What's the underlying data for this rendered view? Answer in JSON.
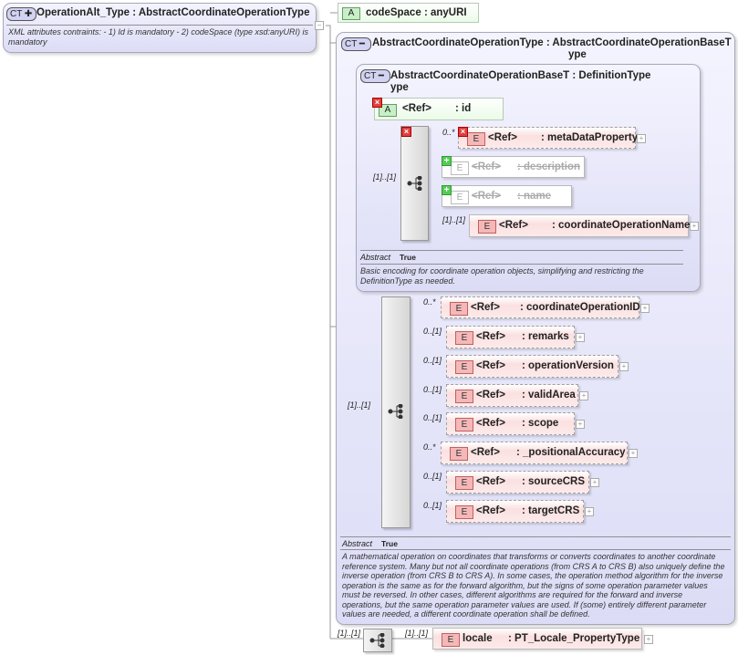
{
  "root": {
    "badge": "CT",
    "name": "OperationAlt_Type",
    "base": ": AbstractCoordinateOperationType",
    "description": "XML attributes contraints: - 1) Id is mandatory - 2) codeSpace (type xsd:anyURI) is mandatory"
  },
  "codeSpace": {
    "icon": "A",
    "name": "codeSpace",
    "type": ": anyURI"
  },
  "outer": {
    "badge": "CT",
    "title_line1": "AbstractCoordinateOperationType : AbstractCoordinateOperationBaseT",
    "title_line2": "ype",
    "abstract_label": "Abstract",
    "abstract_value": "True",
    "description": "A mathematical operation on coordinates that transforms or converts coordinates to another coordinate reference system. Many but not all coordinate operations (from CRS A to CRS B) also uniquely define the inverse operation (from CRS B to CRS A). In some cases, the operation method algorithm for the inverse operation is the same as for the forward algorithm, but the signs of some operation parameter values must be reversed. In other cases, different algorithms are required for the forward and inverse operations, but the same operation parameter values are used. If (some) entirely different parameter values are needed, a different coordinate operation shall be defined.",
    "sequence_cardinality": "[1]..[1]",
    "elements": [
      {
        "card": "0..*",
        "ref": "<Ref>",
        "name": ": coordinateOperationID"
      },
      {
        "card": "0..[1]",
        "ref": "<Ref>",
        "name": ": remarks"
      },
      {
        "card": "0..[1]",
        "ref": "<Ref>",
        "name": ": operationVersion"
      },
      {
        "card": "0..[1]",
        "ref": "<Ref>",
        "name": ": validArea"
      },
      {
        "card": "0..[1]",
        "ref": "<Ref>",
        "name": ": scope"
      },
      {
        "card": "0..*",
        "ref": "<Ref>",
        "name": ": _positionalAccuracy"
      },
      {
        "card": "0..[1]",
        "ref": "<Ref>",
        "name": ": sourceCRS"
      },
      {
        "card": "0..[1]",
        "ref": "<Ref>",
        "name": ": targetCRS"
      }
    ]
  },
  "inner": {
    "badge": "CT",
    "title_line1": "AbstractCoordinateOperationBaseT : DefinitionType",
    "title_line2": "ype",
    "id_attr": {
      "icon": "A",
      "ref": "<Ref>",
      "name": ": id"
    },
    "sequence_cardinality": "[1]..[1]",
    "elements": [
      {
        "card": "0..*",
        "ref": "<Ref>",
        "name": ": metaDataProperty"
      },
      {
        "card": "",
        "ref": "<Ref>",
        "name": ": description"
      },
      {
        "card": "",
        "ref": "<Ref>",
        "name": ": name"
      },
      {
        "card": "[1]..[1]",
        "ref": "<Ref>",
        "name": ": coordinateOperationName"
      }
    ],
    "abstract_label": "Abstract",
    "abstract_value": "True",
    "description": "Basic encoding for coordinate operation objects, simplifying and restricting the DefinitionType as needed."
  },
  "bottom": {
    "sequence_cardinality": "[1]..[1]",
    "element_cardinality": "[1]..[1]",
    "element_icon": "E",
    "element_name": "locale",
    "element_type": ": PT_Locale_PropertyType"
  },
  "element_icon": "E"
}
